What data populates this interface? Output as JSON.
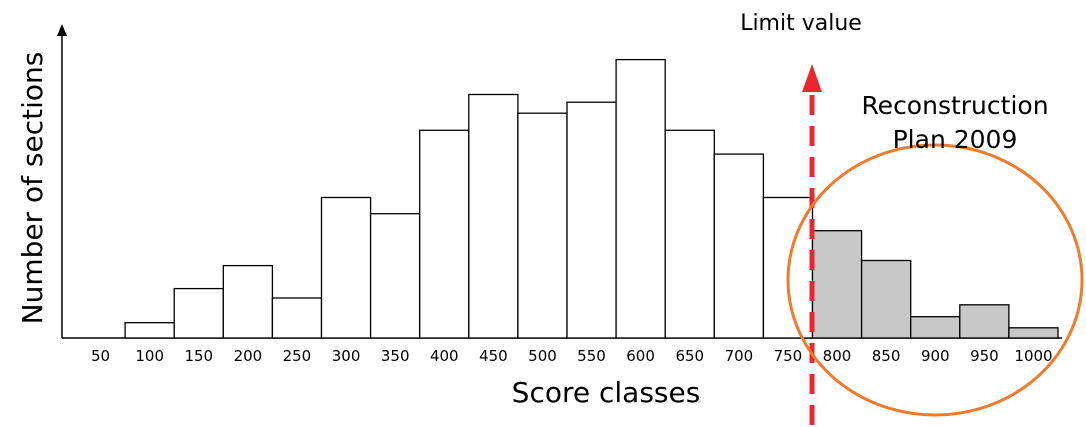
{
  "chart_data": {
    "type": "bar",
    "xlabel": "Score classes",
    "ylabel": "Number of sections",
    "categories": [
      "50",
      "100",
      "150",
      "200",
      "250",
      "300",
      "350",
      "400",
      "450",
      "500",
      "550",
      "600",
      "650",
      "700",
      "750",
      "800",
      "850",
      "900",
      "950",
      "1000"
    ],
    "values": [
      0,
      1.8,
      5.8,
      8.5,
      4.7,
      16.5,
      14.6,
      24.4,
      28.6,
      26.4,
      27.7,
      32.7,
      24.4,
      21.6,
      16.5,
      12.6,
      9.1,
      2.5,
      3.9,
      1.2
    ],
    "ylim": [
      0,
      35
    ],
    "series": [
      {
        "name": "",
        "range": [
          0,
          14
        ],
        "color": "#ffffff"
      },
      {
        "name": "",
        "range": [
          15,
          19
        ],
        "color": "#c8c8c8"
      }
    ],
    "annotations": {
      "limit_label": "Limit value",
      "limit_between": [
        14,
        15
      ],
      "limit_color": "#e8282e",
      "plan_label_line1": "Reconstruction",
      "plan_label_line2": "Plan 2009",
      "plan_color": "#f07a2e"
    },
    "grid": false
  }
}
